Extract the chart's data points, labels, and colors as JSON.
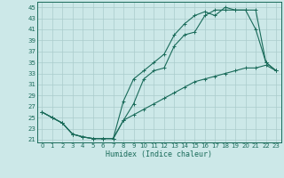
{
  "xlabel": "Humidex (Indice chaleur)",
  "bg_color": "#cce8e8",
  "grid_color": "#aacccc",
  "line_color": "#1a6b5a",
  "xlim": [
    -0.5,
    23.5
  ],
  "ylim": [
    20.5,
    46
  ],
  "xticks": [
    0,
    1,
    2,
    3,
    4,
    5,
    6,
    7,
    8,
    9,
    10,
    11,
    12,
    13,
    14,
    15,
    16,
    17,
    18,
    19,
    20,
    21,
    22,
    23
  ],
  "yticks": [
    21,
    23,
    25,
    27,
    29,
    31,
    33,
    35,
    37,
    39,
    41,
    43,
    45
  ],
  "line1_x": [
    0,
    1,
    2,
    3,
    4,
    5,
    6,
    7,
    8,
    9,
    10,
    11,
    12,
    13,
    14,
    15,
    16,
    17,
    18,
    19,
    20,
    21,
    22,
    23
  ],
  "line1_y": [
    26,
    25,
    24,
    22,
    21.5,
    21.2,
    21.2,
    21.2,
    28,
    32,
    33.5,
    35,
    36.5,
    40,
    42,
    43.5,
    44.2,
    43.5,
    45,
    44.5,
    44.5,
    41,
    35,
    33.5
  ],
  "line2_x": [
    0,
    1,
    2,
    3,
    4,
    5,
    6,
    7,
    8,
    9,
    10,
    11,
    12,
    13,
    14,
    15,
    16,
    17,
    18,
    19,
    20,
    21,
    22,
    23
  ],
  "line2_y": [
    26,
    25,
    24,
    22,
    21.5,
    21.2,
    21.2,
    21.2,
    24.5,
    27.5,
    32,
    33.5,
    34,
    38,
    40,
    40.5,
    43.5,
    44.5,
    44.5,
    44.5,
    44.5,
    44.5,
    35,
    33.5
  ],
  "line3_x": [
    0,
    1,
    2,
    3,
    4,
    5,
    6,
    7,
    8,
    9,
    10,
    11,
    12,
    13,
    14,
    15,
    16,
    17,
    18,
    19,
    20,
    21,
    22,
    23
  ],
  "line3_y": [
    26,
    25,
    24,
    22,
    21.5,
    21.2,
    21.2,
    21.2,
    24.5,
    25.5,
    26.5,
    27.5,
    28.5,
    29.5,
    30.5,
    31.5,
    32,
    32.5,
    33,
    33.5,
    34,
    34,
    34.5,
    33.5
  ]
}
